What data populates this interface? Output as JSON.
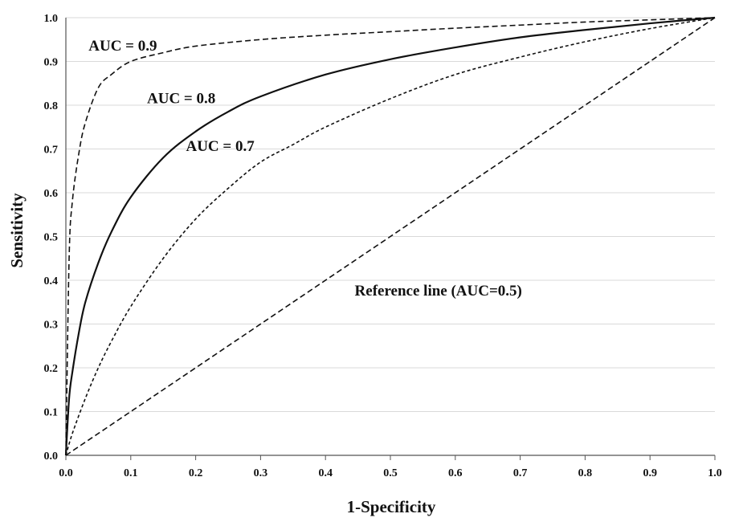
{
  "chart_data": {
    "type": "line",
    "title": "",
    "xlabel": "1-Specificity",
    "ylabel": "Sensitivity",
    "xlim": [
      0,
      1
    ],
    "ylim": [
      0,
      1
    ],
    "xticks": [
      "0.0",
      "0.1",
      "0.2",
      "0.3",
      "0.4",
      "0.5",
      "0.6",
      "0.7",
      "0.8",
      "0.9",
      "1.0"
    ],
    "yticks": [
      "0.0",
      "0.1",
      "0.2",
      "0.3",
      "0.4",
      "0.5",
      "0.6",
      "0.7",
      "0.8",
      "0.9",
      "1.0"
    ],
    "grid": "horizontal",
    "legend": "none",
    "series": [
      {
        "line_style": "dashed",
        "x": [
          0,
          0.005,
          0.01,
          0.02,
          0.03,
          0.05,
          0.07,
          0.1,
          0.15,
          0.2,
          0.3,
          0.4,
          0.5,
          0.6,
          0.7,
          0.8,
          0.9,
          1.0
        ],
        "y": [
          0,
          0.45,
          0.58,
          0.69,
          0.76,
          0.84,
          0.87,
          0.9,
          0.92,
          0.935,
          0.95,
          0.96,
          0.968,
          0.976,
          0.983,
          0.99,
          0.995,
          1.0
        ]
      },
      {
        "line_style": "solid",
        "x": [
          0,
          0.005,
          0.01,
          0.02,
          0.03,
          0.05,
          0.07,
          0.1,
          0.15,
          0.2,
          0.25,
          0.3,
          0.4,
          0.5,
          0.6,
          0.7,
          0.8,
          0.9,
          1.0
        ],
        "y": [
          0,
          0.13,
          0.19,
          0.28,
          0.35,
          0.44,
          0.51,
          0.59,
          0.68,
          0.74,
          0.785,
          0.82,
          0.87,
          0.905,
          0.932,
          0.955,
          0.972,
          0.987,
          1.0
        ]
      },
      {
        "line_style": "dotted",
        "x": [
          0,
          0.01,
          0.03,
          0.05,
          0.07,
          0.1,
          0.15,
          0.2,
          0.25,
          0.3,
          0.35,
          0.4,
          0.5,
          0.6,
          0.7,
          0.8,
          0.9,
          1.0
        ],
        "y": [
          0,
          0.05,
          0.13,
          0.2,
          0.26,
          0.34,
          0.45,
          0.54,
          0.61,
          0.67,
          0.71,
          0.75,
          0.815,
          0.87,
          0.91,
          0.945,
          0.975,
          1.0
        ]
      },
      {
        "line_style": "dashed",
        "x": [
          0,
          1
        ],
        "y": [
          0,
          1
        ]
      }
    ],
    "annotations": [
      {
        "text": "AUC = 0.9",
        "x": 0.035,
        "y": 0.925
      },
      {
        "text": "AUC = 0.8",
        "x": 0.125,
        "y": 0.805
      },
      {
        "text": "AUC = 0.7",
        "x": 0.185,
        "y": 0.695
      },
      {
        "text": "Reference line (AUC=0.5)",
        "x": 0.445,
        "y": 0.365
      }
    ]
  }
}
